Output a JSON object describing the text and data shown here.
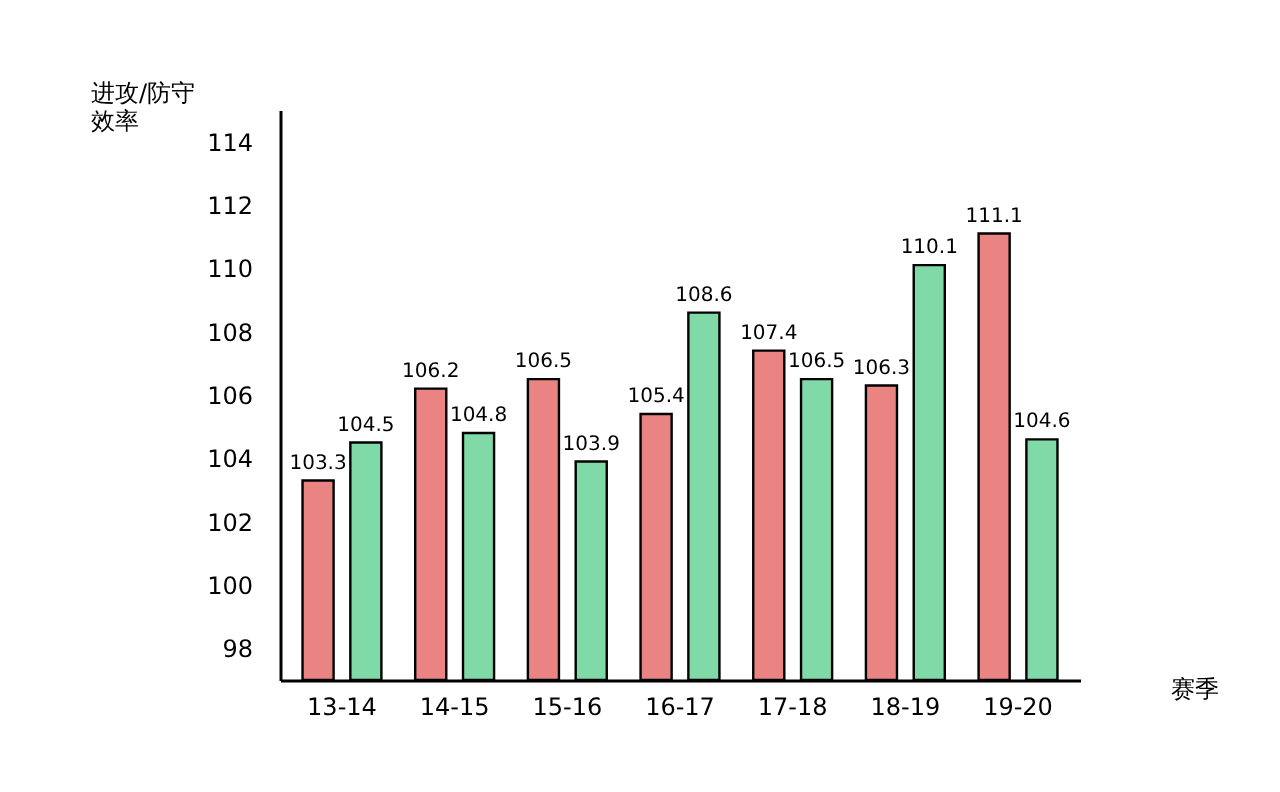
{
  "chart_data": {
    "type": "bar",
    "xlabel": "赛季",
    "ylabel": "进攻/防守效率",
    "categories": [
      "13-14",
      "14-15",
      "15-16",
      "16-17",
      "17-18",
      "18-19",
      "19-20"
    ],
    "series": [
      {
        "color": "#e98483",
        "values": [
          103.3,
          106.2,
          106.5,
          105.4,
          107.4,
          106.3,
          111.1
        ]
      },
      {
        "color": "#7fdaa8",
        "values": [
          104.5,
          104.8,
          103.9,
          108.6,
          106.5,
          110.1,
          104.6
        ]
      }
    ],
    "ylim": [
      97,
      115
    ],
    "yticks": [
      98,
      100,
      102,
      104,
      106,
      108,
      110,
      112,
      114
    ],
    "data_labels": true,
    "grid": false,
    "legend": false
  }
}
